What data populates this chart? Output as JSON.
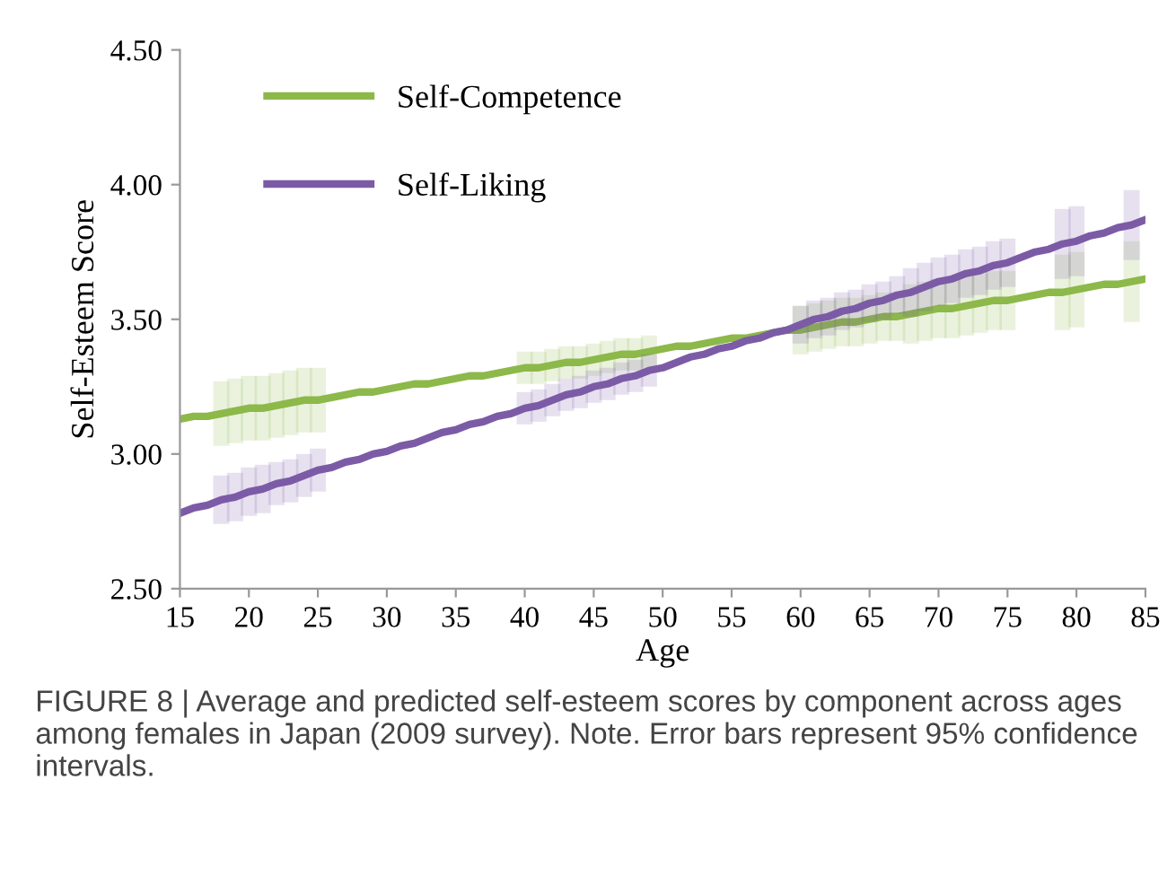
{
  "chart_data": {
    "type": "line",
    "xlabel": "Age",
    "ylabel": "Self-Esteem Score",
    "x": [
      15,
      16,
      17,
      18,
      19,
      20,
      21,
      22,
      23,
      24,
      25,
      26,
      27,
      28,
      29,
      30,
      31,
      32,
      33,
      34,
      35,
      36,
      37,
      38,
      39,
      40,
      41,
      42,
      43,
      44,
      45,
      46,
      47,
      48,
      49,
      50,
      51,
      52,
      53,
      54,
      55,
      56,
      57,
      58,
      59,
      60,
      61,
      62,
      63,
      64,
      65,
      66,
      67,
      68,
      69,
      70,
      71,
      72,
      73,
      74,
      75,
      76,
      77,
      78,
      79,
      80,
      81,
      82,
      83,
      84,
      85
    ],
    "series": [
      {
        "name": "Self-Competence",
        "color": "#8db84a",
        "values": [
          3.13,
          3.14,
          3.14,
          3.15,
          3.16,
          3.17,
          3.17,
          3.18,
          3.19,
          3.2,
          3.2,
          3.21,
          3.22,
          3.23,
          3.23,
          3.24,
          3.25,
          3.26,
          3.26,
          3.27,
          3.28,
          3.29,
          3.29,
          3.3,
          3.31,
          3.32,
          3.32,
          3.33,
          3.34,
          3.34,
          3.35,
          3.36,
          3.37,
          3.37,
          3.38,
          3.39,
          3.4,
          3.4,
          3.41,
          3.42,
          3.43,
          3.43,
          3.44,
          3.45,
          3.46,
          3.46,
          3.47,
          3.48,
          3.49,
          3.49,
          3.5,
          3.51,
          3.51,
          3.52,
          3.53,
          3.54,
          3.54,
          3.55,
          3.56,
          3.57,
          3.57,
          3.58,
          3.59,
          3.6,
          3.6,
          3.61,
          3.62,
          3.63,
          3.63,
          3.64,
          3.65
        ],
        "errors": [
          null,
          null,
          null,
          0.12,
          0.12,
          0.12,
          0.12,
          0.12,
          0.12,
          0.12,
          0.12,
          null,
          null,
          null,
          null,
          null,
          null,
          null,
          null,
          null,
          null,
          null,
          null,
          null,
          null,
          0.06,
          0.06,
          0.06,
          0.06,
          0.06,
          0.06,
          0.06,
          0.06,
          0.06,
          0.06,
          null,
          null,
          null,
          null,
          null,
          null,
          null,
          null,
          null,
          null,
          0.09,
          0.09,
          0.09,
          0.09,
          0.09,
          0.09,
          0.09,
          0.09,
          0.11,
          0.11,
          0.11,
          0.11,
          0.11,
          0.11,
          0.11,
          0.11,
          null,
          null,
          null,
          0.14,
          0.14,
          null,
          null,
          null,
          0.15,
          null
        ]
      },
      {
        "name": "Self-Liking",
        "color": "#7c5ba6",
        "values": [
          2.78,
          2.8,
          2.81,
          2.83,
          2.84,
          2.86,
          2.87,
          2.89,
          2.9,
          2.92,
          2.94,
          2.95,
          2.97,
          2.98,
          3.0,
          3.01,
          3.03,
          3.04,
          3.06,
          3.08,
          3.09,
          3.11,
          3.12,
          3.14,
          3.15,
          3.17,
          3.18,
          3.2,
          3.22,
          3.23,
          3.25,
          3.26,
          3.28,
          3.29,
          3.31,
          3.32,
          3.34,
          3.36,
          3.37,
          3.39,
          3.4,
          3.42,
          3.43,
          3.45,
          3.46,
          3.48,
          3.5,
          3.51,
          3.53,
          3.54,
          3.56,
          3.57,
          3.59,
          3.6,
          3.62,
          3.64,
          3.65,
          3.67,
          3.68,
          3.7,
          3.71,
          3.73,
          3.75,
          3.76,
          3.78,
          3.79,
          3.81,
          3.82,
          3.84,
          3.85,
          3.87
        ],
        "errors": [
          null,
          null,
          null,
          0.09,
          0.09,
          0.09,
          0.09,
          0.08,
          0.08,
          0.08,
          0.08,
          null,
          null,
          null,
          null,
          null,
          null,
          null,
          null,
          null,
          null,
          null,
          null,
          null,
          null,
          0.06,
          0.06,
          0.06,
          0.06,
          0.06,
          0.06,
          0.06,
          0.06,
          0.06,
          0.06,
          null,
          null,
          null,
          null,
          null,
          null,
          null,
          null,
          null,
          null,
          0.07,
          0.07,
          0.07,
          0.07,
          0.07,
          0.07,
          0.07,
          0.07,
          0.09,
          0.09,
          0.09,
          0.09,
          0.09,
          0.09,
          0.09,
          0.09,
          null,
          null,
          null,
          0.13,
          0.13,
          null,
          null,
          null,
          0.13,
          null
        ]
      }
    ],
    "xlim": [
      15,
      85
    ],
    "xticks": [
      15,
      20,
      25,
      30,
      35,
      40,
      45,
      50,
      55,
      60,
      65,
      70,
      75,
      80,
      85
    ],
    "ylim": [
      2.5,
      4.5
    ],
    "yticks": [
      {
        "value": 2.5,
        "label": "2.50"
      },
      {
        "value": 3.0,
        "label": "3.00"
      },
      {
        "value": 3.5,
        "label": "3.50"
      },
      {
        "value": 4.0,
        "label": "4.00"
      },
      {
        "value": 4.5,
        "label": "4.50"
      }
    ],
    "grid": false,
    "legend": "top left",
    "marker": "none",
    "line_style": "solid",
    "annotations": [
      "FIGURE 8 | Average and predicted self-esteem scores by component across ages among females in Japan (2009 survey). Note. Error bars represent 95% confidence intervals."
    ]
  }
}
